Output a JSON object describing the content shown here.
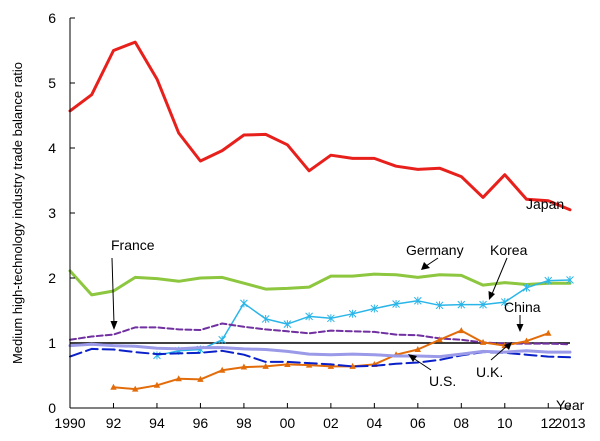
{
  "chart_data": {
    "type": "line",
    "title": "",
    "ylabel": "Medium high-technology industry trade balance ratio",
    "xlabel": "Year",
    "xlim": [
      1990,
      2013
    ],
    "ylim": [
      0,
      6
    ],
    "grid": false,
    "x_ticks": [
      {
        "value": 1990,
        "label": "1990"
      },
      {
        "value": 1992,
        "label": "92"
      },
      {
        "value": 1994,
        "label": "94"
      },
      {
        "value": 1996,
        "label": "96"
      },
      {
        "value": 1998,
        "label": "98"
      },
      {
        "value": 2000,
        "label": "00"
      },
      {
        "value": 2002,
        "label": "02"
      },
      {
        "value": 2004,
        "label": "04"
      },
      {
        "value": 2006,
        "label": "06"
      },
      {
        "value": 2008,
        "label": "08"
      },
      {
        "value": 2010,
        "label": "10"
      },
      {
        "value": 2012,
        "label": "12"
      },
      {
        "value": 2013,
        "label": "2013"
      }
    ],
    "y_ticks": [
      {
        "value": 0,
        "label": "0"
      },
      {
        "value": 1,
        "label": "1"
      },
      {
        "value": 2,
        "label": "2"
      },
      {
        "value": 3,
        "label": "3"
      },
      {
        "value": 4,
        "label": "4"
      },
      {
        "value": 5,
        "label": "5"
      },
      {
        "value": 6,
        "label": "6"
      }
    ],
    "reference_line": {
      "y": 1,
      "color": "#000000"
    },
    "series": [
      {
        "key": "japan",
        "name": "Japan",
        "color": "#e8201c",
        "style": "solid",
        "width": 3,
        "marker": "none",
        "x": [
          1990,
          1991,
          1992,
          1993,
          1994,
          1995,
          1996,
          1997,
          1998,
          1999,
          2000,
          2001,
          2002,
          2003,
          2004,
          2005,
          2006,
          2007,
          2008,
          2009,
          2010,
          2011,
          2012,
          2013
        ],
        "y": [
          4.57,
          4.82,
          5.5,
          5.63,
          5.06,
          4.23,
          3.8,
          3.96,
          4.2,
          4.21,
          4.05,
          3.65,
          3.89,
          3.84,
          3.84,
          3.72,
          3.67,
          3.69,
          3.56,
          3.24,
          3.59,
          3.21,
          3.19,
          3.05
        ]
      },
      {
        "key": "germany",
        "name": "Germany",
        "color": "#8dc63f",
        "style": "solid",
        "width": 3,
        "marker": "none",
        "x": [
          1990,
          1991,
          1992,
          1993,
          1994,
          1995,
          1996,
          1997,
          1998,
          1999,
          2000,
          2001,
          2002,
          2003,
          2004,
          2005,
          2006,
          2007,
          2008,
          2009,
          2010,
          2011,
          2012,
          2013
        ],
        "y": [
          2.11,
          1.74,
          1.8,
          2.01,
          1.99,
          1.95,
          2.0,
          2.01,
          1.92,
          1.83,
          1.84,
          1.86,
          2.03,
          2.03,
          2.06,
          2.05,
          2.01,
          2.05,
          2.04,
          1.89,
          1.93,
          1.9,
          1.92,
          1.92
        ]
      },
      {
        "key": "korea",
        "name": "Korea",
        "color": "#29b5e8",
        "style": "solid",
        "width": 1.5,
        "marker": "asterisk",
        "x": [
          1994,
          1995,
          1996,
          1997,
          1998,
          1999,
          2000,
          2001,
          2002,
          2003,
          2004,
          2005,
          2006,
          2007,
          2008,
          2009,
          2010,
          2011,
          2012,
          2013
        ],
        "y": [
          0.81,
          0.88,
          0.9,
          1.05,
          1.61,
          1.37,
          1.29,
          1.41,
          1.38,
          1.45,
          1.53,
          1.6,
          1.65,
          1.58,
          1.59,
          1.59,
          1.63,
          1.85,
          1.96,
          1.97
        ]
      },
      {
        "key": "france",
        "name": "France",
        "color": "#7030a0",
        "style": "dashed",
        "width": 2,
        "marker": "none",
        "x": [
          1990,
          1991,
          1992,
          1993,
          1994,
          1995,
          1996,
          1997,
          1998,
          1999,
          2000,
          2001,
          2002,
          2003,
          2004,
          2005,
          2006,
          2007,
          2008,
          2009,
          2010,
          2011,
          2012,
          2013
        ],
        "y": [
          1.05,
          1.1,
          1.13,
          1.24,
          1.24,
          1.21,
          1.2,
          1.3,
          1.25,
          1.21,
          1.18,
          1.15,
          1.19,
          1.18,
          1.17,
          1.13,
          1.12,
          1.07,
          1.05,
          1.01,
          0.99,
          0.99,
          0.99,
          0.98
        ]
      },
      {
        "key": "china",
        "name": "China",
        "color": "#e36c0a",
        "style": "solid",
        "width": 2,
        "marker": "triangle",
        "x": [
          1992,
          1993,
          1994,
          1995,
          1996,
          1997,
          1998,
          1999,
          2000,
          2001,
          2002,
          2003,
          2004,
          2005,
          2006,
          2007,
          2008,
          2009,
          2010,
          2011,
          2012
        ],
        "y": [
          0.32,
          0.29,
          0.35,
          0.45,
          0.44,
          0.58,
          0.63,
          0.64,
          0.67,
          0.66,
          0.64,
          0.64,
          0.67,
          0.82,
          0.9,
          1.05,
          1.19,
          1.01,
          0.96,
          1.03,
          1.15
        ]
      },
      {
        "key": "us",
        "name": "U.S.",
        "color": "#0a20c8",
        "style": "longdash",
        "width": 2,
        "marker": "none",
        "x": [
          1990,
          1991,
          1992,
          1993,
          1994,
          1995,
          1996,
          1997,
          1998,
          1999,
          2000,
          2001,
          2002,
          2003,
          2004,
          2005,
          2006,
          2007,
          2008,
          2009,
          2010,
          2011,
          2012,
          2013
        ],
        "y": [
          0.79,
          0.91,
          0.9,
          0.86,
          0.83,
          0.84,
          0.85,
          0.88,
          0.82,
          0.71,
          0.71,
          0.69,
          0.67,
          0.64,
          0.65,
          0.68,
          0.7,
          0.74,
          0.81,
          0.86,
          0.85,
          0.82,
          0.79,
          0.78
        ]
      },
      {
        "key": "uk",
        "name": "U.K.",
        "color": "#9a9ae8",
        "style": "solid",
        "width": 3,
        "marker": "none",
        "x": [
          1990,
          1991,
          1992,
          1993,
          1994,
          1995,
          1996,
          1997,
          1998,
          1999,
          2000,
          2001,
          2002,
          2003,
          2004,
          2005,
          2006,
          2007,
          2008,
          2009,
          2010,
          2011,
          2012,
          2013
        ],
        "y": [
          0.96,
          0.98,
          0.96,
          0.95,
          0.92,
          0.91,
          0.93,
          0.93,
          0.91,
          0.9,
          0.87,
          0.83,
          0.82,
          0.83,
          0.82,
          0.8,
          0.8,
          0.79,
          0.83,
          0.87,
          0.86,
          0.88,
          0.86,
          0.86
        ]
      }
    ],
    "annotations": [
      {
        "key": "japan",
        "text": "Japan"
      },
      {
        "key": "germany",
        "text": "Germany"
      },
      {
        "key": "korea",
        "text": "Korea"
      },
      {
        "key": "france",
        "text": "France"
      },
      {
        "key": "china",
        "text": "China"
      },
      {
        "key": "us",
        "text": "U.S."
      },
      {
        "key": "uk",
        "text": "U.K."
      }
    ]
  }
}
